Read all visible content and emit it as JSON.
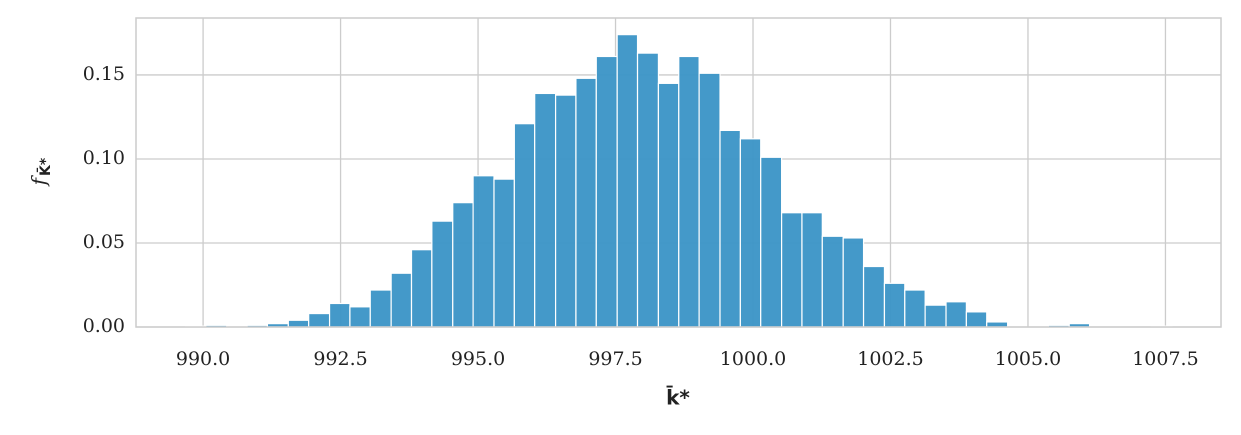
{
  "chart_data": {
    "type": "histogram",
    "xlabel": "k̄*",
    "ylabel": "f",
    "ylabel_subscript": "K̄*",
    "color": "#3a93c6",
    "grid": true,
    "bins": [
      989.68,
      990.05,
      990.43,
      990.8,
      991.17,
      991.55,
      991.92,
      992.3,
      992.67,
      993.04,
      993.42,
      993.79,
      994.16,
      994.54,
      994.91,
      995.29,
      995.66,
      996.03,
      996.41,
      996.78,
      997.15,
      997.53,
      997.9,
      998.28,
      998.65,
      999.02,
      999.4,
      999.77,
      1000.14,
      1000.52,
      1000.89,
      1001.26,
      1001.64,
      1002.01,
      1002.39,
      1002.76,
      1003.13,
      1003.51,
      1003.88,
      1004.25,
      1004.63,
      1005.0,
      1005.37,
      1005.75,
      1006.12,
      1006.5,
      1006.87,
      1007.24,
      1007.62
    ],
    "values": [
      0.0005,
      0.001,
      0,
      0.001,
      0.002,
      0.004,
      0.008,
      0.014,
      0.012,
      0.022,
      0.032,
      0.046,
      0.063,
      0.074,
      0.09,
      0.088,
      0.121,
      0.139,
      0.138,
      0.148,
      0.161,
      0.174,
      0.163,
      0.145,
      0.161,
      0.151,
      0.117,
      0.112,
      0.101,
      0.068,
      0.068,
      0.054,
      0.053,
      0.036,
      0.026,
      0.022,
      0.013,
      0.015,
      0.009,
      0.003,
      0,
      0,
      0.001,
      0.002,
      0,
      0,
      0,
      0.0005
    ],
    "xlim": [
      988.78,
      1008.51
    ],
    "ylim": [
      0,
      0.1839
    ],
    "xticks": [
      {
        "value": 990,
        "label": "990.0"
      },
      {
        "value": 992.5,
        "label": "992.5"
      },
      {
        "value": 995,
        "label": "995.0"
      },
      {
        "value": 997.5,
        "label": "997.5"
      },
      {
        "value": 1000,
        "label": "1000.0"
      },
      {
        "value": 1002.5,
        "label": "1002.5"
      },
      {
        "value": 1005,
        "label": "1005.0"
      },
      {
        "value": 1007.5,
        "label": "1007.5"
      }
    ],
    "yticks": [
      {
        "value": 0,
        "label": "0.00"
      },
      {
        "value": 0.05,
        "label": "0.05"
      },
      {
        "value": 0.1,
        "label": "0.10"
      },
      {
        "value": 0.15,
        "label": "0.15"
      }
    ]
  }
}
